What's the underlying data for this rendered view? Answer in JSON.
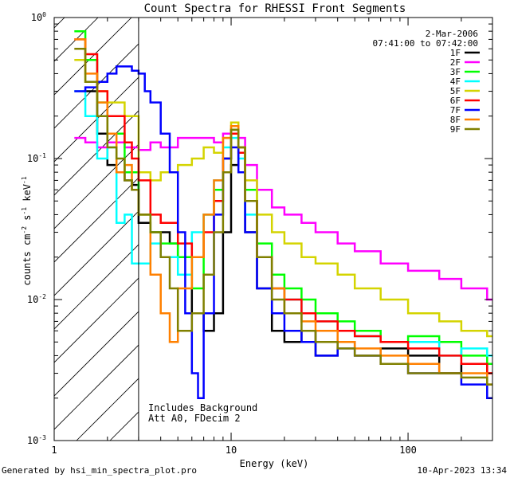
{
  "chart_data": {
    "type": "line",
    "title": "Count Spectra for RHESSI Front Segments",
    "xlabel": "Energy (keV)",
    "ylabel_parts": [
      "counts cm",
      "-2",
      " s",
      "-1",
      " keV",
      "-1"
    ],
    "xscale": "log",
    "yscale": "log",
    "xlim": [
      1,
      300
    ],
    "ylim": [
      0.001,
      1
    ],
    "x_ticks": [
      {
        "value": 1,
        "label": "1"
      },
      {
        "value": 10,
        "label": "10"
      },
      {
        "value": 100,
        "label": "100"
      }
    ],
    "y_ticks": [
      {
        "value": 0.001,
        "base": "10",
        "exp": "-3"
      },
      {
        "value": 0.01,
        "base": "10",
        "exp": "-2"
      },
      {
        "value": 0.1,
        "base": "10",
        "exp": "-1"
      },
      {
        "value": 1,
        "base": "10",
        "exp": "0"
      }
    ],
    "date": "2-Mar-2006",
    "time_range": "07:41:00 to 07:42:00",
    "annotations": [
      "Includes Background",
      "Att A0, FDecim 2"
    ],
    "shaded_below_energy": 3,
    "series": [
      {
        "name": "1F",
        "color": "#000000",
        "x": [
          1.5,
          1.75,
          2.0,
          2.25,
          2.5,
          2.75,
          3.0,
          3.5,
          4.0,
          4.5,
          5.0,
          6.0,
          7.0,
          8.0,
          9.0,
          10.0,
          11.0,
          12.0,
          14.0,
          17.0,
          20.0,
          25.0,
          30.0,
          40.0,
          50.0,
          70.0,
          100.0,
          150.0,
          200.0,
          280.0
        ],
        "y": [
          0.3,
          0.15,
          0.09,
          0.08,
          0.07,
          0.065,
          0.035,
          0.03,
          0.03,
          0.025,
          0.02,
          0.008,
          0.006,
          0.008,
          0.03,
          0.09,
          0.12,
          0.03,
          0.012,
          0.006,
          0.005,
          0.006,
          0.004,
          0.005,
          0.004,
          0.0045,
          0.004,
          0.003,
          0.0035,
          0.003
        ]
      },
      {
        "name": "2F",
        "color": "#ff00ff",
        "x": [
          1.3,
          1.5,
          1.75,
          2.0,
          2.5,
          3.0,
          3.5,
          4.0,
          5.0,
          6.0,
          7.0,
          8.0,
          9.0,
          10.0,
          11.0,
          12.0,
          14.0,
          17.0,
          20.0,
          25.0,
          30.0,
          40.0,
          50.0,
          70.0,
          100.0,
          150.0,
          200.0,
          280.0
        ],
        "y": [
          0.14,
          0.13,
          0.12,
          0.13,
          0.12,
          0.115,
          0.13,
          0.12,
          0.14,
          0.14,
          0.14,
          0.13,
          0.15,
          0.16,
          0.14,
          0.09,
          0.06,
          0.045,
          0.04,
          0.035,
          0.03,
          0.025,
          0.022,
          0.018,
          0.016,
          0.014,
          0.012,
          0.01
        ]
      },
      {
        "name": "3F",
        "color": "#00ff00",
        "x": [
          1.3,
          1.5,
          1.75,
          2.0,
          2.5,
          3.0,
          3.5,
          4.0,
          5.0,
          6.0,
          7.0,
          8.0,
          9.0,
          10.0,
          11.0,
          12.0,
          14.0,
          17.0,
          20.0,
          25.0,
          30.0,
          40.0,
          50.0,
          70.0,
          100.0,
          150.0,
          200.0,
          280.0
        ],
        "y": [
          0.8,
          0.5,
          0.25,
          0.15,
          0.08,
          0.04,
          0.03,
          0.025,
          0.02,
          0.012,
          0.04,
          0.06,
          0.1,
          0.16,
          0.12,
          0.06,
          0.025,
          0.015,
          0.012,
          0.01,
          0.008,
          0.007,
          0.006,
          0.005,
          0.0055,
          0.005,
          0.004,
          0.0035
        ]
      },
      {
        "name": "4F",
        "color": "#00ffff",
        "x": [
          1.3,
          1.5,
          1.75,
          2.0,
          2.25,
          2.5,
          2.75,
          3.0,
          3.5,
          4.0,
          5.0,
          6.0,
          7.0,
          8.0,
          9.0,
          10.0,
          11.0,
          12.0,
          14.0,
          17.0,
          20.0,
          25.0,
          30.0,
          40.0,
          50.0,
          70.0,
          100.0,
          150.0,
          200.0,
          280.0
        ],
        "y": [
          0.3,
          0.2,
          0.1,
          0.12,
          0.035,
          0.04,
          0.018,
          0.018,
          0.025,
          0.02,
          0.015,
          0.03,
          0.04,
          0.07,
          0.12,
          0.14,
          0.1,
          0.04,
          0.02,
          0.012,
          0.01,
          0.008,
          0.007,
          0.006,
          0.0055,
          0.005,
          0.005,
          0.004,
          0.0045,
          0.004
        ]
      },
      {
        "name": "5F",
        "color": "#d4d400",
        "x": [
          1.3,
          1.5,
          1.75,
          2.0,
          2.5,
          3.0,
          3.5,
          4.0,
          5.0,
          6.0,
          7.0,
          8.0,
          9.0,
          10.0,
          11.0,
          12.0,
          14.0,
          17.0,
          20.0,
          25.0,
          30.0,
          40.0,
          50.0,
          70.0,
          100.0,
          150.0,
          200.0,
          280.0
        ],
        "y": [
          0.5,
          0.35,
          0.3,
          0.25,
          0.2,
          0.08,
          0.07,
          0.08,
          0.09,
          0.1,
          0.12,
          0.11,
          0.14,
          0.18,
          0.12,
          0.07,
          0.04,
          0.03,
          0.025,
          0.02,
          0.018,
          0.015,
          0.012,
          0.01,
          0.008,
          0.007,
          0.006,
          0.0055
        ]
      },
      {
        "name": "6F",
        "color": "#ff0000",
        "x": [
          1.3,
          1.5,
          1.75,
          2.0,
          2.25,
          2.5,
          2.75,
          3.0,
          3.5,
          4.0,
          5.0,
          6.0,
          7.0,
          8.0,
          9.0,
          10.0,
          11.0,
          12.0,
          14.0,
          17.0,
          20.0,
          25.0,
          30.0,
          40.0,
          50.0,
          70.0,
          100.0,
          150.0,
          200.0,
          280.0
        ],
        "y": [
          0.7,
          0.55,
          0.3,
          0.2,
          0.2,
          0.13,
          0.1,
          0.07,
          0.04,
          0.035,
          0.025,
          0.02,
          0.03,
          0.05,
          0.1,
          0.15,
          0.11,
          0.05,
          0.02,
          0.012,
          0.01,
          0.008,
          0.007,
          0.006,
          0.0055,
          0.005,
          0.0045,
          0.004,
          0.0035,
          0.003
        ]
      },
      {
        "name": "7F",
        "color": "#0000ff",
        "x": [
          1.3,
          1.5,
          1.75,
          2.0,
          2.25,
          2.5,
          2.75,
          3.0,
          3.25,
          3.5,
          4.0,
          4.5,
          5.0,
          5.5,
          6.0,
          6.5,
          7.0,
          8.0,
          9.0,
          10.0,
          11.0,
          12.0,
          14.0,
          17.0,
          20.0,
          25.0,
          30.0,
          40.0,
          50.0,
          70.0,
          100.0,
          150.0,
          200.0,
          280.0
        ],
        "y": [
          0.3,
          0.32,
          0.35,
          0.4,
          0.45,
          0.45,
          0.42,
          0.4,
          0.3,
          0.25,
          0.15,
          0.08,
          0.03,
          0.008,
          0.003,
          0.002,
          0.008,
          0.04,
          0.1,
          0.12,
          0.08,
          0.03,
          0.012,
          0.008,
          0.006,
          0.005,
          0.004,
          0.0045,
          0.004,
          0.0035,
          0.003,
          0.003,
          0.0025,
          0.002
        ]
      },
      {
        "name": "8F",
        "color": "#ff8000",
        "x": [
          1.3,
          1.5,
          1.75,
          2.0,
          2.25,
          2.5,
          2.75,
          3.0,
          3.5,
          4.0,
          4.5,
          5.0,
          6.0,
          7.0,
          8.0,
          9.0,
          10.0,
          11.0,
          12.0,
          14.0,
          17.0,
          20.0,
          25.0,
          30.0,
          40.0,
          50.0,
          70.0,
          100.0,
          150.0,
          200.0,
          280.0
        ],
        "y": [
          0.7,
          0.4,
          0.25,
          0.15,
          0.08,
          0.09,
          0.06,
          0.04,
          0.015,
          0.008,
          0.005,
          0.012,
          0.02,
          0.04,
          0.07,
          0.14,
          0.17,
          0.12,
          0.05,
          0.02,
          0.012,
          0.008,
          0.007,
          0.006,
          0.005,
          0.0045,
          0.004,
          0.0035,
          0.003,
          0.003,
          0.0025
        ]
      },
      {
        "name": "9F",
        "color": "#808000",
        "x": [
          1.3,
          1.5,
          1.75,
          2.0,
          2.25,
          2.5,
          2.75,
          3.0,
          3.5,
          4.0,
          4.5,
          5.0,
          6.0,
          7.0,
          8.0,
          9.0,
          10.0,
          11.0,
          12.0,
          14.0,
          17.0,
          20.0,
          25.0,
          30.0,
          40.0,
          50.0,
          70.0,
          100.0,
          150.0,
          200.0,
          280.0
        ],
        "y": [
          0.6,
          0.35,
          0.2,
          0.12,
          0.1,
          0.07,
          0.06,
          0.04,
          0.03,
          0.02,
          0.012,
          0.006,
          0.008,
          0.015,
          0.03,
          0.08,
          0.16,
          0.12,
          0.05,
          0.02,
          0.01,
          0.008,
          0.006,
          0.005,
          0.0045,
          0.004,
          0.0035,
          0.003,
          0.003,
          0.0028,
          0.0025
        ]
      }
    ]
  },
  "footer": {
    "generated_by": "Generated by hsi_min_spectra_plot.pro",
    "timestamp": "10-Apr-2023 13:34"
  }
}
